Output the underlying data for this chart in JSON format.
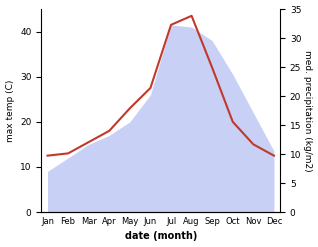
{
  "months": [
    "Jan",
    "Feb",
    "Mar",
    "Apr",
    "May",
    "Jun",
    "Jul",
    "Aug",
    "Sep",
    "Oct",
    "Nov",
    "Dec"
  ],
  "temp": [
    12.5,
    13.0,
    15.5,
    18.0,
    23.0,
    27.5,
    41.5,
    43.5,
    32.0,
    20.0,
    15.0,
    12.5
  ],
  "precip": [
    9.0,
    12.0,
    15.0,
    17.0,
    20.0,
    26.0,
    41.5,
    41.0,
    38.0,
    30.5,
    22.0,
    13.5
  ],
  "temp_color": "#c0392b",
  "precip_fill_color": "#c8d0f5",
  "temp_ylim": [
    0,
    45
  ],
  "precip_ylim": [
    0,
    35
  ],
  "temp_yticks": [
    0,
    10,
    20,
    30,
    40
  ],
  "precip_yticks": [
    0,
    5,
    10,
    15,
    20,
    25,
    30,
    35
  ],
  "xlabel": "date (month)",
  "ylabel_left": "max temp (C)",
  "ylabel_right": "med. precipitation (kg/m2)"
}
